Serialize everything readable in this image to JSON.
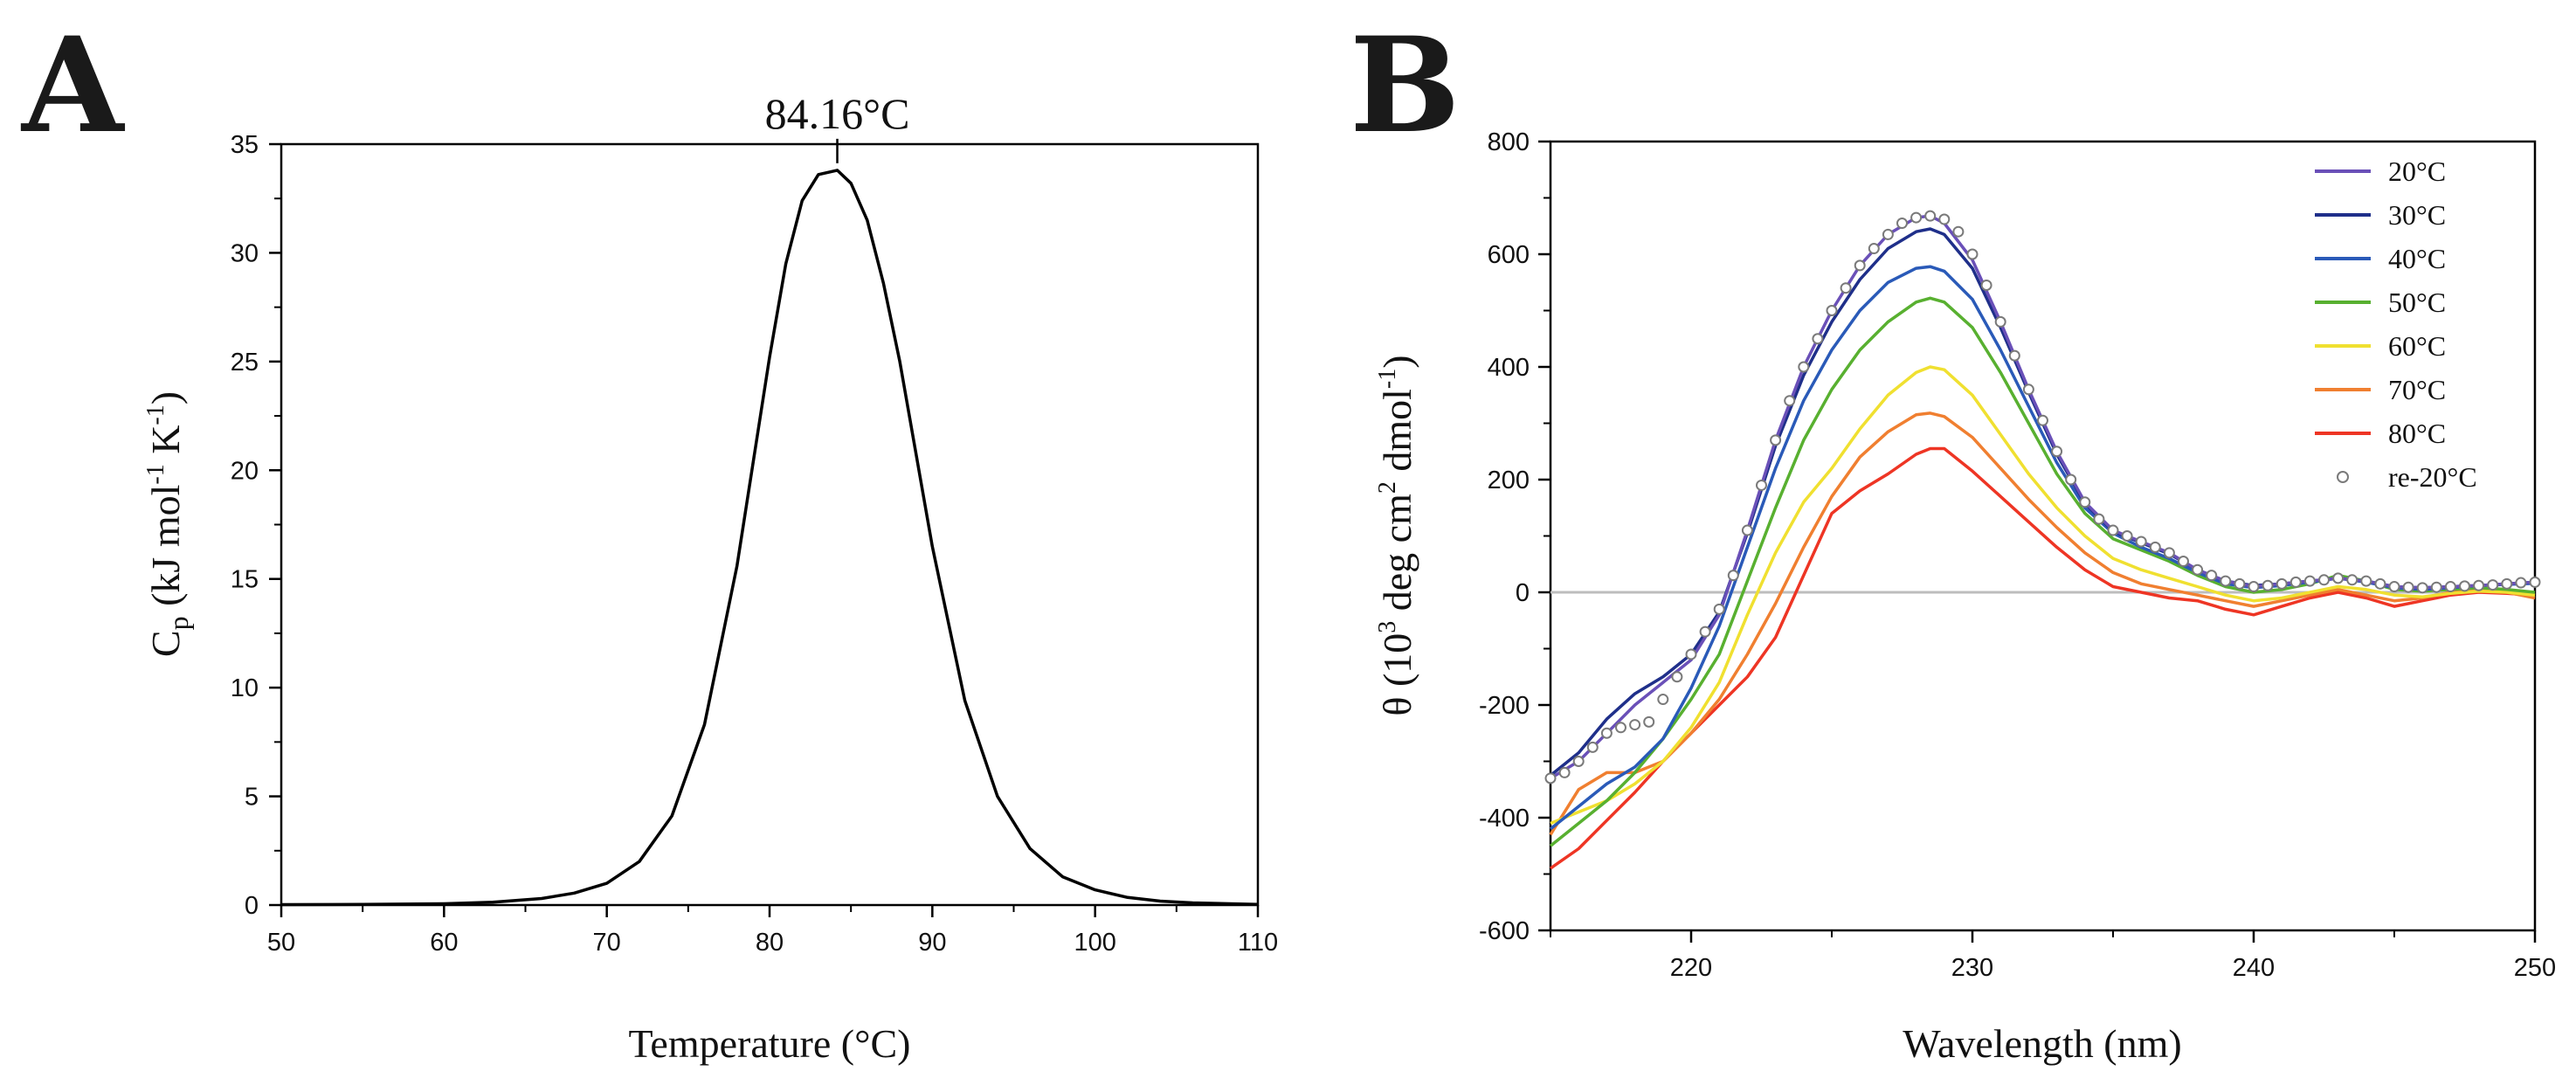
{
  "chart_data": [
    {
      "panel": "A",
      "type": "line",
      "xlabel": "Temperature (°C)",
      "ylabel": {
        "main": "C",
        "sub": "p",
        "rest1": " (kJ mol",
        "sup1": "-1",
        "rest2": " K",
        "sup2": "-1",
        "rest3": ")"
      },
      "xlim": [
        50,
        110
      ],
      "ylim": [
        0,
        35
      ],
      "xticks": [
        50,
        60,
        70,
        80,
        90,
        100,
        110
      ],
      "yticks": [
        0,
        5,
        10,
        15,
        20,
        25,
        30,
        35
      ],
      "annotation": {
        "text": "84.16°C",
        "x": 84.16
      },
      "series": [
        {
          "name": "Cp",
          "color": "#000000",
          "x": [
            50,
            55,
            60,
            63,
            66,
            68,
            70,
            72,
            74,
            76,
            78,
            80,
            81,
            82,
            83,
            84.16,
            85,
            86,
            87,
            88,
            90,
            92,
            94,
            96,
            98,
            100,
            102,
            104,
            106,
            110
          ],
          "y": [
            0.02,
            0.03,
            0.06,
            0.13,
            0.3,
            0.55,
            1.0,
            2.0,
            4.1,
            8.3,
            15.6,
            25.2,
            29.5,
            32.4,
            33.6,
            33.8,
            33.2,
            31.5,
            28.6,
            25.0,
            16.5,
            9.4,
            5.0,
            2.6,
            1.3,
            0.7,
            0.35,
            0.18,
            0.1,
            0.03
          ]
        }
      ]
    },
    {
      "panel": "B",
      "type": "line",
      "xlabel": "Wavelength (nm)",
      "ylabel": {
        "main": "θ (10",
        "sup1": "3",
        "rest1": " deg cm",
        "sup2": "2",
        "rest2": " dmol",
        "sup3": "-1",
        "rest3": ")"
      },
      "xlim": [
        215,
        250
      ],
      "ylim": [
        -600,
        800
      ],
      "xticks": [
        220,
        230,
        240,
        250
      ],
      "yticks": [
        -600,
        -400,
        -200,
        0,
        200,
        400,
        600,
        800
      ],
      "zero_line": true,
      "legend_position": "top-right",
      "series": [
        {
          "name": "20°C",
          "color": "#6a50b8",
          "x": [
            215,
            216,
            217,
            218,
            219,
            220,
            221,
            222,
            223,
            224,
            225,
            226,
            227,
            228,
            228.5,
            229,
            230,
            231,
            232,
            233,
            234,
            235,
            236,
            237,
            238,
            239,
            240,
            241,
            242,
            243,
            244,
            245,
            246,
            247,
            248,
            249,
            250
          ],
          "y": [
            -330,
            -300,
            -250,
            -200,
            -160,
            -120,
            -40,
            110,
            270,
            400,
            500,
            580,
            635,
            665,
            668,
            655,
            590,
            480,
            360,
            250,
            160,
            110,
            90,
            70,
            40,
            20,
            10,
            15,
            20,
            25,
            20,
            10,
            8,
            10,
            12,
            15,
            18
          ]
        },
        {
          "name": "30°C",
          "color": "#1f2f8a",
          "x": [
            215,
            216,
            217,
            218,
            219,
            220,
            221,
            222,
            223,
            224,
            225,
            226,
            227,
            228,
            228.5,
            229,
            230,
            231,
            232,
            233,
            234,
            235,
            236,
            237,
            238,
            239,
            240,
            241,
            242,
            243,
            244,
            245,
            246,
            247,
            248,
            249,
            250
          ],
          "y": [
            -325,
            -285,
            -225,
            -180,
            -150,
            -110,
            -35,
            105,
            260,
            385,
            480,
            555,
            610,
            640,
            645,
            635,
            575,
            470,
            355,
            245,
            158,
            108,
            88,
            68,
            40,
            20,
            12,
            15,
            20,
            25,
            20,
            10,
            8,
            10,
            12,
            15,
            18
          ]
        },
        {
          "name": "40°C",
          "color": "#2a5ab8",
          "x": [
            215,
            216,
            217,
            218,
            219,
            220,
            221,
            222,
            223,
            224,
            225,
            226,
            227,
            228,
            228.5,
            229,
            230,
            231,
            232,
            233,
            234,
            235,
            236,
            237,
            238,
            239,
            240,
            241,
            242,
            243,
            244,
            245,
            246,
            247,
            248,
            249,
            250
          ],
          "y": [
            -420,
            -380,
            -340,
            -310,
            -260,
            -170,
            -60,
            80,
            220,
            340,
            430,
            500,
            550,
            575,
            578,
            570,
            520,
            430,
            330,
            230,
            150,
            105,
            80,
            60,
            35,
            15,
            8,
            12,
            18,
            25,
            18,
            8,
            5,
            8,
            12,
            14,
            16
          ]
        },
        {
          "name": "50°C",
          "color": "#58b030",
          "x": [
            215,
            216,
            217,
            218,
            219,
            220,
            221,
            222,
            223,
            224,
            225,
            226,
            227,
            228,
            228.5,
            229,
            230,
            231,
            232,
            233,
            234,
            235,
            236,
            237,
            238,
            239,
            240,
            241,
            242,
            243,
            244,
            245,
            246,
            247,
            248,
            249,
            250
          ],
          "y": [
            -450,
            -410,
            -370,
            -320,
            -260,
            -190,
            -110,
            20,
            150,
            270,
            360,
            430,
            480,
            515,
            522,
            515,
            470,
            390,
            300,
            210,
            140,
            95,
            75,
            55,
            30,
            10,
            0,
            5,
            15,
            30,
            20,
            5,
            2,
            5,
            8,
            5,
            0
          ]
        },
        {
          "name": "60°C",
          "color": "#f0e030",
          "x": [
            215,
            216,
            217,
            218,
            219,
            220,
            221,
            222,
            223,
            224,
            225,
            226,
            227,
            228,
            228.5,
            229,
            230,
            231,
            232,
            233,
            234,
            235,
            236,
            237,
            238,
            239,
            240,
            241,
            242,
            243,
            244,
            245,
            246,
            247,
            248,
            249,
            250
          ],
          "y": [
            -410,
            -390,
            -370,
            -340,
            -300,
            -240,
            -160,
            -40,
            70,
            160,
            220,
            290,
            350,
            390,
            400,
            395,
            350,
            280,
            210,
            150,
            100,
            60,
            40,
            25,
            10,
            -5,
            -15,
            -10,
            0,
            10,
            5,
            -5,
            -8,
            -2,
            2,
            0,
            -5
          ]
        },
        {
          "name": "70°C",
          "color": "#f07f30",
          "x": [
            215,
            216,
            217,
            218,
            219,
            220,
            221,
            222,
            223,
            224,
            225,
            226,
            227,
            228,
            228.5,
            229,
            230,
            231,
            232,
            233,
            234,
            235,
            236,
            237,
            238,
            239,
            240,
            241,
            242,
            243,
            244,
            245,
            246,
            247,
            248,
            249,
            250
          ],
          "y": [
            -430,
            -350,
            -320,
            -320,
            -300,
            -250,
            -190,
            -110,
            -20,
            80,
            170,
            240,
            285,
            315,
            318,
            312,
            275,
            220,
            165,
            115,
            70,
            35,
            15,
            5,
            -5,
            -15,
            -25,
            -15,
            -5,
            5,
            -5,
            -15,
            -10,
            0,
            5,
            0,
            -10
          ]
        },
        {
          "name": "80°C",
          "color": "#ee3524",
          "x": [
            215,
            216,
            217,
            218,
            219,
            220,
            221,
            222,
            223,
            224,
            225,
            226,
            227,
            228,
            228.5,
            229,
            230,
            231,
            232,
            233,
            234,
            235,
            236,
            237,
            238,
            239,
            240,
            241,
            242,
            243,
            244,
            245,
            246,
            247,
            248,
            249,
            250
          ],
          "y": [
            -490,
            -455,
            -405,
            -355,
            -300,
            -250,
            -200,
            -150,
            -80,
            30,
            140,
            180,
            210,
            245,
            255,
            255,
            215,
            170,
            125,
            80,
            40,
            10,
            0,
            -10,
            -15,
            -30,
            -40,
            -25,
            -10,
            0,
            -10,
            -25,
            -15,
            -5,
            0,
            -2,
            -5
          ]
        }
      ],
      "scatter": {
        "name": "re-20°C",
        "color": "#ffffff",
        "stroke": "#7a7a7a",
        "x": [
          215,
          215.5,
          216,
          216.5,
          217,
          217.5,
          218,
          218.5,
          219,
          219.5,
          220,
          220.5,
          221,
          221.5,
          222,
          222.5,
          223,
          223.5,
          224,
          224.5,
          225,
          225.5,
          226,
          226.5,
          227,
          227.5,
          228,
          228.5,
          229,
          229.5,
          230,
          230.5,
          231,
          231.5,
          232,
          232.5,
          233,
          233.5,
          234,
          234.5,
          235,
          235.5,
          236,
          236.5,
          237,
          237.5,
          238,
          238.5,
          239,
          239.5,
          240,
          240.5,
          241,
          241.5,
          242,
          242.5,
          243,
          243.5,
          244,
          244.5,
          245,
          245.5,
          246,
          246.5,
          247,
          247.5,
          248,
          248.5,
          249,
          249.5,
          250
        ],
        "y": [
          -330,
          -320,
          -300,
          -275,
          -250,
          -240,
          -235,
          -230,
          -190,
          -150,
          -110,
          -70,
          -30,
          30,
          110,
          190,
          270,
          340,
          400,
          450,
          500,
          540,
          580,
          610,
          635,
          655,
          665,
          668,
          662,
          640,
          600,
          545,
          480,
          420,
          360,
          305,
          250,
          200,
          160,
          130,
          110,
          100,
          90,
          80,
          70,
          55,
          40,
          30,
          20,
          15,
          10,
          12,
          15,
          18,
          20,
          22,
          25,
          22,
          20,
          15,
          10,
          9,
          8,
          9,
          10,
          11,
          12,
          13,
          15,
          17,
          18
        ]
      }
    }
  ]
}
